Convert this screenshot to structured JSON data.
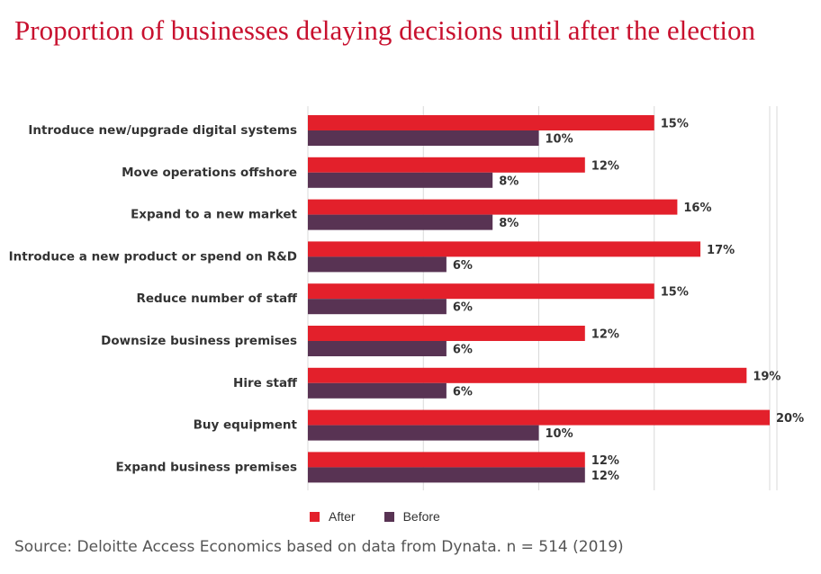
{
  "title": "Proportion of businesses delaying decisions until after the election",
  "source": "Source: Deloitte Access Economics based on data from Dynata. n = 514 (2019)",
  "colors": {
    "after": "#e3202b",
    "before": "#583353",
    "title": "#c8102e",
    "grid": "#d9d9d9"
  },
  "chart_data": {
    "type": "bar",
    "orientation": "horizontal",
    "categories": [
      "Introduce new/upgrade digital systems",
      "Move operations offshore",
      "Expand to a new market",
      "Introduce a new product or spend on R&D",
      "Reduce number of staff",
      "Downsize business premises",
      "Hire staff",
      "Buy equipment",
      "Expand business premises"
    ],
    "series": [
      {
        "name": "After",
        "values": [
          15,
          12,
          16,
          17,
          15,
          12,
          19,
          20,
          12
        ]
      },
      {
        "name": "Before",
        "values": [
          10,
          8,
          8,
          6,
          6,
          6,
          6,
          10,
          12
        ]
      }
    ],
    "value_suffix": "%",
    "xlim": [
      0,
      20
    ],
    "grid": true,
    "legend": "bottom"
  }
}
